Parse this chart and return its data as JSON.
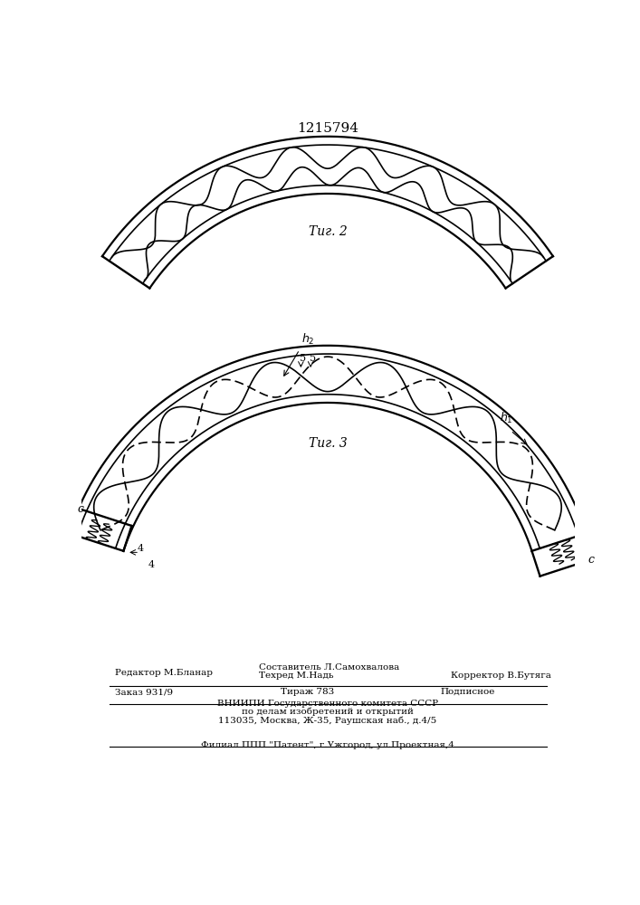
{
  "title": "1215794",
  "fig2_label": "Τиг. 2",
  "fig3_label": "Τиг. 3",
  "bg_color": "#ffffff",
  "line_color": "#000000",
  "lw": 1.2
}
